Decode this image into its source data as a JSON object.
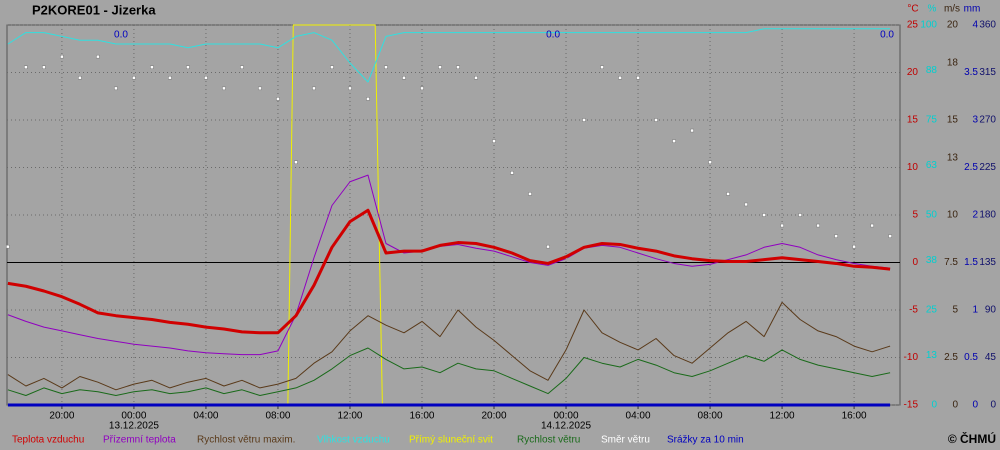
{
  "chart_data": {
    "type": "line",
    "title": "P2KORE01 - Jizerka",
    "copyright": "© ČHMÚ",
    "grid": true,
    "x": [
      -7,
      -6,
      -5,
      -4,
      -3,
      -2,
      -1,
      0,
      1,
      2,
      3,
      4,
      5,
      6,
      7,
      8,
      9,
      10,
      11,
      12,
      13,
      14,
      15,
      16,
      17,
      18,
      19,
      20,
      21,
      22,
      23,
      24,
      25,
      26,
      27,
      28,
      29,
      30,
      31,
      32,
      33,
      34,
      35,
      36,
      37,
      38,
      39,
      40,
      41,
      42
    ],
    "xlim": [
      -7.05,
      42.55
    ],
    "xticks": [
      {
        "value": -4,
        "label": "20:00"
      },
      {
        "value": 0,
        "label": "00:00"
      },
      {
        "value": 4,
        "label": "04:00"
      },
      {
        "value": 8,
        "label": "08:00"
      },
      {
        "value": 12,
        "label": "12:00"
      },
      {
        "value": 16,
        "label": "16:00"
      },
      {
        "value": 20,
        "label": "20:00"
      },
      {
        "value": 24,
        "label": "00:00"
      },
      {
        "value": 28,
        "label": "04:00"
      },
      {
        "value": 32,
        "label": "08:00"
      },
      {
        "value": 36,
        "label": "12:00"
      },
      {
        "value": 40,
        "label": "16:00"
      }
    ],
    "dates": [
      {
        "value": 0,
        "label": "13.12.2025"
      },
      {
        "value": 24,
        "label": "14.12.2025"
      }
    ],
    "precip_totals": [
      {
        "value": 0,
        "label": "0.0"
      },
      {
        "value": 0,
        "label": "0.0"
      },
      {
        "value": 0,
        "label": "0.0"
      }
    ],
    "axes": [
      {
        "unit": "°C",
        "color": "#c00000",
        "lim": [
          -15,
          25
        ],
        "ticks": [
          25,
          20,
          15,
          10,
          5,
          0,
          -5,
          -10,
          -15
        ]
      },
      {
        "unit": "%",
        "color": "#00d0d0",
        "lim": [
          0,
          100
        ],
        "ticks": [
          100,
          88,
          75,
          63,
          50,
          38,
          25,
          13,
          0
        ]
      },
      {
        "unit": "m/s",
        "color": "#3a2410",
        "lim": [
          0,
          20
        ],
        "ticks": [
          20,
          18,
          15,
          13,
          10,
          7.5,
          5,
          2.5,
          0
        ]
      },
      {
        "unit": "mm",
        "color": "#0000b0",
        "lim": [
          0,
          4
        ],
        "ticks": [
          4,
          3.5,
          3,
          2.5,
          2,
          1.5,
          1,
          0.5,
          0
        ]
      },
      {
        "color": "#10106a",
        "lim": [
          0,
          360
        ],
        "ticks": [
          360,
          315,
          270,
          225,
          180,
          135,
          90,
          45,
          0
        ]
      }
    ],
    "series": [
      {
        "name": "Teplota vzduchu",
        "color": "#d00000",
        "axis": 0,
        "mark": "thick",
        "values": [
          -2.2,
          -2.5,
          -3.0,
          -3.6,
          -4.4,
          -5.3,
          -5.6,
          -5.8,
          -6.0,
          -6.3,
          -6.5,
          -6.8,
          -7.0,
          -7.3,
          -7.4,
          -7.4,
          -5.6,
          -2.4,
          1.6,
          4.3,
          5.5,
          1.0,
          1.2,
          1.2,
          1.8,
          2.1,
          2.0,
          1.6,
          1.0,
          0.2,
          -0.1,
          0.6,
          1.6,
          2.0,
          1.9,
          1.5,
          1.2,
          0.7,
          0.4,
          0.2,
          0.1,
          0.1,
          0.3,
          0.5,
          0.3,
          0.1,
          -0.1,
          -0.4,
          -0.5,
          -0.7
        ]
      },
      {
        "name": "Přízemní teplota",
        "color": "#9000c0",
        "axis": 0,
        "mark": "line",
        "values": [
          -5.5,
          -6.2,
          -6.8,
          -7.2,
          -7.6,
          -8.0,
          -8.3,
          -8.6,
          -8.8,
          -9.0,
          -9.3,
          -9.5,
          -9.6,
          -9.7,
          -9.7,
          -9.3,
          -5.5,
          0.5,
          6.0,
          8.5,
          9.2,
          2.0,
          1.0,
          1.2,
          1.7,
          1.9,
          1.5,
          1.2,
          0.6,
          0.0,
          -0.3,
          0.4,
          1.5,
          1.8,
          1.6,
          1.0,
          0.4,
          -0.1,
          -0.4,
          -0.2,
          0.3,
          0.8,
          1.6,
          2.0,
          1.6,
          0.8,
          0.3,
          -0.1,
          -0.4,
          -0.6
        ]
      },
      {
        "name": "Rychlost větru maxim.",
        "color": "#5a3a1a",
        "axis": 2,
        "mark": "line",
        "values": [
          1.6,
          1.0,
          1.4,
          0.9,
          1.5,
          1.2,
          0.8,
          1.1,
          1.3,
          0.9,
          1.2,
          1.4,
          1.0,
          1.3,
          0.9,
          1.1,
          1.4,
          2.2,
          2.8,
          3.9,
          4.7,
          4.2,
          3.8,
          4.4,
          3.6,
          5.0,
          4.1,
          3.4,
          2.6,
          1.8,
          1.3,
          2.9,
          5.0,
          3.8,
          3.3,
          2.9,
          3.5,
          2.6,
          2.2,
          3.0,
          3.8,
          4.4,
          3.6,
          5.4,
          4.5,
          3.9,
          3.6,
          3.1,
          2.8,
          3.1
        ]
      },
      {
        "name": "Vlhkost vzduchu",
        "color": "#30e0e0",
        "axis": 1,
        "mark": "line",
        "values": [
          95,
          98,
          98,
          97,
          96,
          96,
          95,
          95,
          95,
          95,
          94,
          95,
          95,
          95,
          95,
          94,
          97,
          98,
          96,
          90,
          85,
          97,
          98,
          98,
          98,
          98,
          98,
          98,
          98,
          98,
          98,
          98,
          98,
          98,
          98,
          98,
          98,
          98,
          98,
          98,
          98,
          98,
          99,
          99,
          99,
          99,
          99,
          99,
          99,
          99
        ]
      },
      {
        "name": "Přímý sluneční svit",
        "color": "#f0f000",
        "axis": 1,
        "mark": "line",
        "x": [
          -7,
          8.55,
          8.85,
          13.4,
          13.8,
          42
        ],
        "values": [
          0,
          0,
          100,
          100,
          0,
          0
        ]
      },
      {
        "name": "Rychlost větru",
        "color": "#1a6a1a",
        "axis": 2,
        "mark": "line",
        "values": [
          0.8,
          0.5,
          0.9,
          0.6,
          0.8,
          0.7,
          0.5,
          0.7,
          0.8,
          0.6,
          0.7,
          0.9,
          0.6,
          0.8,
          0.5,
          0.7,
          0.9,
          1.3,
          1.9,
          2.6,
          3.0,
          2.4,
          1.9,
          2.0,
          1.7,
          2.2,
          1.9,
          1.8,
          1.4,
          1.0,
          0.6,
          1.4,
          2.5,
          2.2,
          2.0,
          2.4,
          2.1,
          1.7,
          1.5,
          1.8,
          2.2,
          2.6,
          2.3,
          2.9,
          2.4,
          2.1,
          1.9,
          1.7,
          1.5,
          1.7
        ]
      },
      {
        "name": "Směr větru",
        "color": "#ffffff",
        "axis": 4,
        "mark": "dots",
        "values": [
          150,
          320,
          320,
          330,
          310,
          330,
          300,
          310,
          320,
          310,
          320,
          310,
          300,
          320,
          300,
          290,
          230,
          300,
          320,
          300,
          290,
          320,
          310,
          300,
          320,
          320,
          310,
          250,
          220,
          200,
          150,
          140,
          270,
          320,
          310,
          310,
          270,
          250,
          260,
          230,
          200,
          190,
          180,
          170,
          180,
          170,
          160,
          150,
          170,
          160
        ]
      },
      {
        "name": "Srážky za 10 min",
        "color": "#0000c0",
        "axis": 3,
        "mark": "thick",
        "values": [
          0,
          0,
          0,
          0,
          0,
          0,
          0,
          0,
          0,
          0,
          0,
          0,
          0,
          0,
          0,
          0,
          0,
          0,
          0,
          0,
          0,
          0,
          0,
          0,
          0,
          0,
          0,
          0,
          0,
          0,
          0,
          0,
          0,
          0,
          0,
          0,
          0,
          0,
          0,
          0,
          0,
          0,
          0,
          0,
          0,
          0,
          0,
          0,
          0,
          0
        ]
      }
    ]
  }
}
